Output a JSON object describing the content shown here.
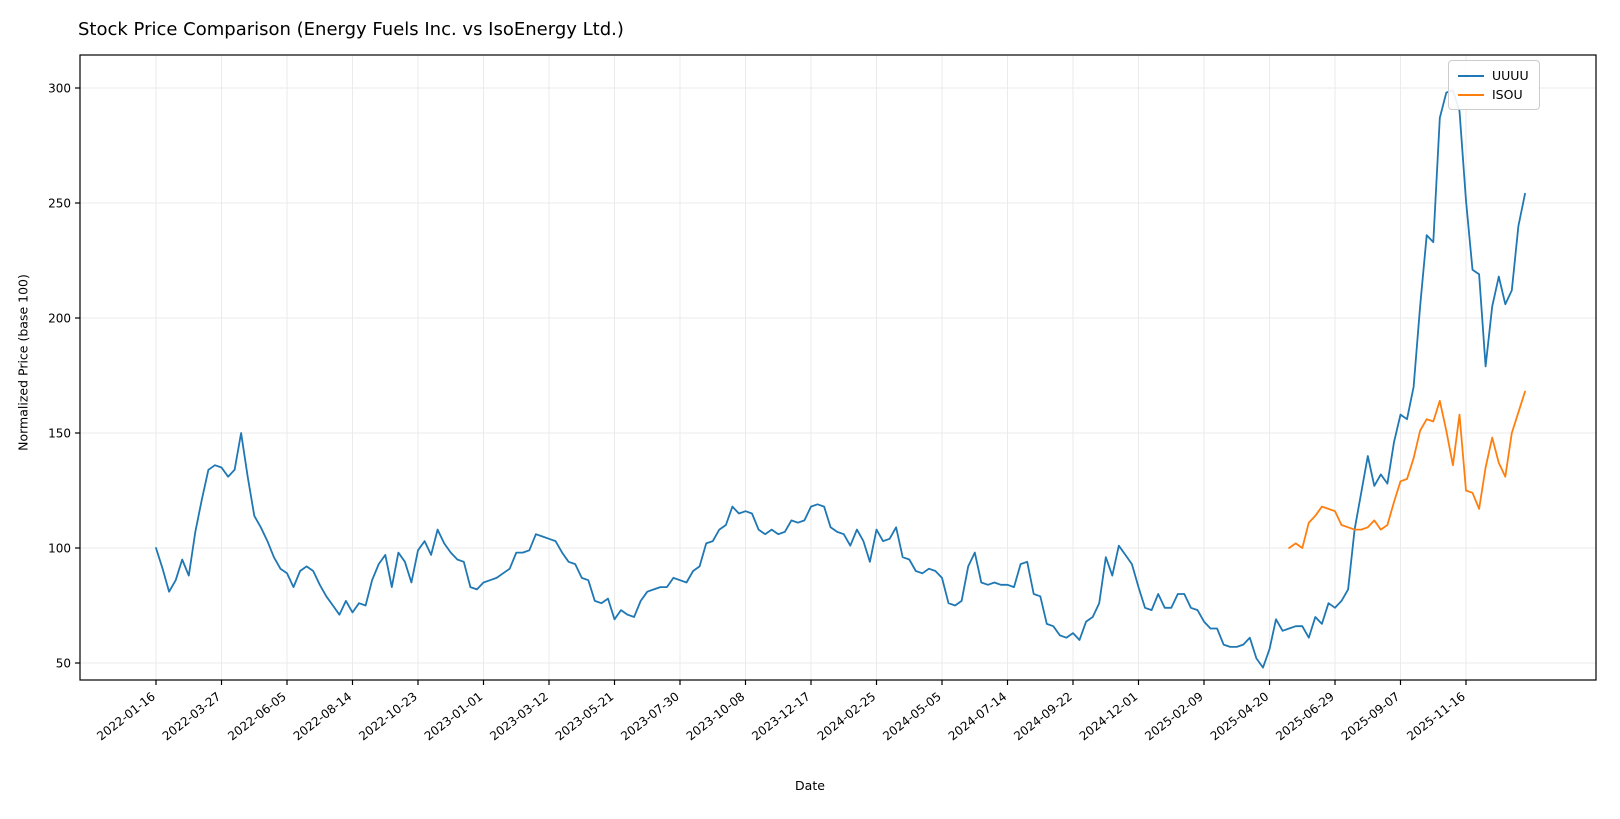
{
  "title": "Stock Price Comparison (Energy Fuels Inc. vs IsoEnergy Ltd.)",
  "chart_data": {
    "type": "line",
    "title": "Stock Price Comparison (Energy Fuels Inc. vs IsoEnergy Ltd.)",
    "xlabel": "Date",
    "ylabel": "Normalized Price (base 100)",
    "grid": true,
    "legend_position": "upper right",
    "x_start": "2022-01-16",
    "x_step_days": 7,
    "x_tick_every_n_points": 10,
    "x_tick_labels": [
      "2022-01-16",
      "2022-03-27",
      "2022-06-05",
      "2022-08-14",
      "2022-10-23",
      "2023-01-01",
      "2023-03-12",
      "2023-05-21",
      "2023-07-30",
      "2023-10-08",
      "2023-12-17",
      "2024-02-25",
      "2024-05-05",
      "2024-07-14",
      "2024-09-22",
      "2024-12-01",
      "2025-02-09",
      "2025-04-20",
      "2025-06-29",
      "2025-09-07",
      "2025-11-16"
    ],
    "yticks": [
      50,
      100,
      150,
      200,
      250,
      300
    ],
    "ylim": [
      43,
      314
    ],
    "series": [
      {
        "name": "UUUU",
        "color": "#1f77b4",
        "start_week": 0,
        "start_date": "2022-01-16",
        "values": [
          100,
          91,
          81,
          86,
          95,
          88,
          107,
          121,
          134,
          136,
          135,
          131,
          134,
          150,
          131,
          114,
          109,
          103,
          96,
          91,
          89,
          83,
          90,
          92,
          90,
          84,
          79,
          75,
          71,
          77,
          72,
          76,
          75,
          86,
          93,
          97,
          83,
          98,
          94,
          85,
          99,
          103,
          97,
          108,
          102,
          98,
          95,
          94,
          83,
          82,
          85,
          86,
          87,
          89,
          91,
          98,
          98,
          99,
          106,
          105,
          104,
          103,
          98,
          94,
          93,
          87,
          86,
          77,
          76,
          78,
          69,
          73,
          71,
          70,
          77,
          81,
          82,
          83,
          83,
          87,
          86,
          85,
          90,
          92,
          102,
          103,
          108,
          110,
          118,
          115,
          116,
          115,
          108,
          106,
          108,
          106,
          107,
          112,
          111,
          112,
          118,
          119,
          118,
          109,
          107,
          106,
          101,
          108,
          103,
          94,
          108,
          103,
          104,
          109,
          96,
          95,
          90,
          89,
          91,
          90,
          87,
          76,
          75,
          77,
          92,
          98,
          85,
          84,
          85,
          84,
          84,
          83,
          93,
          94,
          80,
          79,
          67,
          66,
          62,
          61,
          63,
          60,
          68,
          70,
          76,
          96,
          88,
          101,
          97,
          93,
          83,
          74,
          73,
          80,
          74,
          74,
          80,
          80,
          74,
          73,
          68,
          65,
          65,
          58,
          57,
          57,
          58,
          61,
          52,
          48,
          56,
          69,
          64,
          65,
          66,
          66,
          61,
          70,
          67,
          76,
          74,
          77,
          82,
          108,
          124,
          140,
          127,
          132,
          128,
          146,
          158,
          156,
          170,
          205,
          236,
          233,
          287,
          298,
          299,
          290,
          251,
          221,
          219,
          179,
          205,
          218,
          206,
          212,
          240,
          254
        ]
      },
      {
        "name": "ISOU",
        "color": "#ff7f0e",
        "start_week": 173,
        "start_date": "2025-05-11",
        "values": [
          100,
          102,
          100,
          111,
          114,
          118,
          117,
          116,
          110,
          109,
          108,
          108,
          109,
          112,
          108,
          110,
          120,
          129,
          130,
          139,
          151,
          156,
          155,
          164,
          151,
          136,
          158,
          125,
          124,
          117,
          135,
          148,
          137,
          131,
          150,
          159,
          168
        ]
      }
    ]
  },
  "legend": {
    "items": [
      {
        "label": "UUUU",
        "color": "#1f77b4"
      },
      {
        "label": "ISOU",
        "color": "#ff7f0e"
      }
    ]
  }
}
